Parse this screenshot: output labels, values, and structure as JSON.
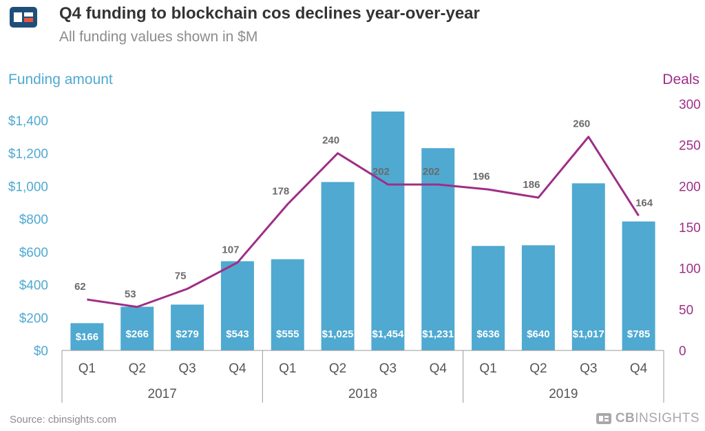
{
  "header": {
    "title": "Q4 funding to blockchain cos declines year-over-year",
    "subtitle": "All funding values shown in $M"
  },
  "axes": {
    "left_title": "Funding amount",
    "right_title": "Deals"
  },
  "footer": {
    "source": "Source: cbinsights.com",
    "brand_bold": "CB",
    "brand_rest": "INSIGHTS"
  },
  "colors": {
    "bar": "#4fa9d1",
    "line": "#9e2e86",
    "left_axis": "#4fa9d1",
    "right_axis": "#9e2e86",
    "logo_dark": "#1f4e79",
    "logo_accent": "#e8563f"
  },
  "chart_data": {
    "type": "bar",
    "title": "Q4 funding to blockchain cos declines year-over-year",
    "subtitle": "All funding values shown in $M",
    "categories": [
      "Q1",
      "Q2",
      "Q3",
      "Q4",
      "Q1",
      "Q2",
      "Q3",
      "Q4",
      "Q1",
      "Q2",
      "Q3",
      "Q4"
    ],
    "groups": [
      {
        "label": "2017",
        "count": 4
      },
      {
        "label": "2018",
        "count": 4
      },
      {
        "label": "2019",
        "count": 4
      }
    ],
    "series": [
      {
        "name": "Funding amount",
        "type": "bar",
        "axis": "left",
        "values": [
          166,
          266,
          279,
          543,
          555,
          1025,
          1454,
          1231,
          636,
          640,
          1017,
          785
        ],
        "labels": [
          "$166",
          "$266",
          "$279",
          "$543",
          "$555",
          "$1,025",
          "$1,454",
          "$1,231",
          "$636",
          "$640",
          "$1,017",
          "$785"
        ]
      },
      {
        "name": "Deals",
        "type": "line",
        "axis": "right",
        "values": [
          62,
          53,
          75,
          107,
          178,
          240,
          202,
          202,
          196,
          186,
          260,
          164
        ],
        "labels": [
          "62",
          "53",
          "75",
          "107",
          "178",
          "240",
          "202",
          "202",
          "196",
          "186",
          "260",
          "164"
        ]
      }
    ],
    "ylim_left": [
      0,
      1500
    ],
    "yticks_left": [
      "$0",
      "$200",
      "$400",
      "$600",
      "$800",
      "$1,000",
      "$1,200",
      "$1,400"
    ],
    "yticks_left_values": [
      0,
      200,
      400,
      600,
      800,
      1000,
      1200,
      1400
    ],
    "ylim_right": [
      0,
      300
    ],
    "yticks_right": [
      "0",
      "50",
      "100",
      "150",
      "200",
      "250",
      "300"
    ],
    "yticks_right_values": [
      0,
      50,
      100,
      150,
      200,
      250,
      300
    ],
    "ylabel_left": "Funding amount",
    "ylabel_right": "Deals",
    "grid": false,
    "legend": "none"
  }
}
